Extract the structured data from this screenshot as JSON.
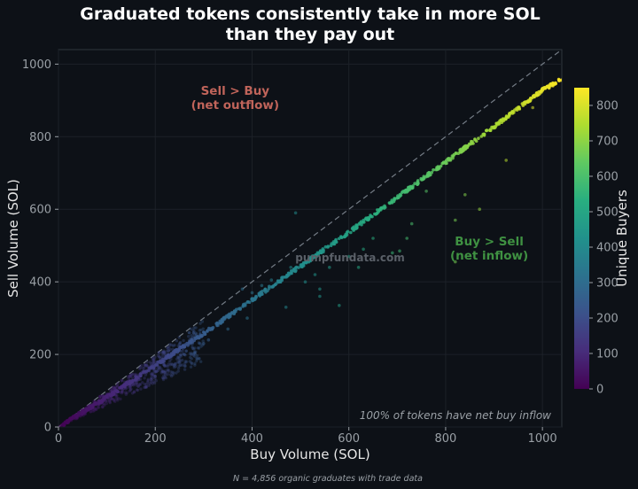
{
  "chart_data": {
    "type": "scatter",
    "title_lines": [
      "Graduated tokens consistently take in more SOL",
      "than they pay out"
    ],
    "xlabel": "Buy Volume (SOL)",
    "ylabel": "Sell Volume (SOL)",
    "xlim": [
      0,
      1040
    ],
    "ylim": [
      0,
      1040
    ],
    "x_ticks": [
      0,
      200,
      400,
      600,
      800,
      1000
    ],
    "y_ticks": [
      0,
      200,
      400,
      600,
      800,
      1000
    ],
    "x_tick_labels": [
      "0",
      "200",
      "400",
      "600",
      "800",
      "1000"
    ],
    "y_tick_labels": [
      "0",
      "200",
      "400",
      "600",
      "800",
      "1000"
    ],
    "grid": true,
    "reference_line": {
      "label": "",
      "points": [
        [
          0,
          0
        ],
        [
          1040,
          1040
        ]
      ],
      "style": "dashed"
    },
    "main_trend": {
      "description": "",
      "points": [
        [
          0,
          0
        ],
        [
          100,
          82
        ],
        [
          200,
          170
        ],
        [
          300,
          258
        ],
        [
          400,
          350
        ],
        [
          500,
          443
        ],
        [
          600,
          537
        ],
        [
          700,
          633
        ],
        [
          800,
          730
        ],
        [
          900,
          828
        ],
        [
          1000,
          928
        ],
        [
          1040,
          960
        ]
      ]
    },
    "colorbar": {
      "label": "Unique Buyers",
      "range": [
        0,
        850
      ],
      "ticks": [
        0,
        100,
        200,
        300,
        400,
        500,
        600,
        700,
        800
      ],
      "tick_labels": [
        "0",
        "100",
        "200",
        "300",
        "400",
        "500",
        "600",
        "700",
        "800"
      ],
      "colormap": "viridis"
    },
    "annotations": [
      {
        "text_lines": [
          "Sell > Buy",
          "(net outflow)"
        ],
        "x": 365,
        "y": 915,
        "color": "#c0645a"
      },
      {
        "text_lines": [
          "Buy > Sell",
          "(net inflow)"
        ],
        "x": 890,
        "y": 500,
        "color": "#3f9142"
      },
      {
        "text": "100% of tokens have net buy inflow",
        "placement": "bottom-right"
      }
    ],
    "watermark": "pumpfundata.com",
    "footnote": "N = 4,856 organic graduates with trade data",
    "outliers": [
      [
        490,
        590
      ],
      [
        820,
        570
      ],
      [
        925,
        735
      ],
      [
        720,
        520
      ],
      [
        630,
        490
      ],
      [
        560,
        440
      ],
      [
        540,
        380
      ],
      [
        400,
        370
      ],
      [
        470,
        330
      ],
      [
        380,
        380
      ],
      [
        290,
        250
      ],
      [
        260,
        200
      ],
      [
        980,
        880
      ],
      [
        705,
        485
      ],
      [
        820,
        455
      ],
      [
        580,
        335
      ],
      [
        510,
        400
      ],
      [
        440,
        405
      ],
      [
        350,
        270
      ],
      [
        330,
        280
      ],
      [
        250,
        220
      ],
      [
        760,
        650
      ],
      [
        840,
        640
      ],
      [
        690,
        480
      ],
      [
        620,
        440
      ],
      [
        480,
        440
      ],
      [
        540,
        360
      ],
      [
        420,
        390
      ],
      [
        310,
        240
      ],
      [
        220,
        150
      ],
      [
        200,
        140
      ],
      [
        180,
        110
      ],
      [
        870,
        600
      ],
      [
        730,
        560
      ],
      [
        530,
        420
      ],
      [
        390,
        300
      ],
      [
        300,
        230
      ],
      [
        270,
        260
      ],
      [
        650,
        520
      ],
      [
        600,
        470
      ]
    ]
  }
}
